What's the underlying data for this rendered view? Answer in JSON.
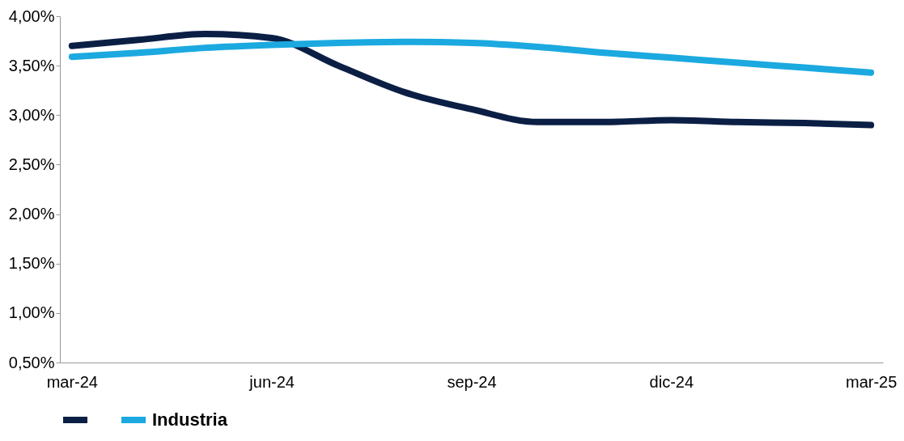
{
  "chart_data": {
    "type": "line",
    "categories": [
      "mar-24",
      null,
      null,
      "jun-24",
      null,
      null,
      "sep-24",
      null,
      null,
      "dic-24",
      null,
      null,
      "mar-25"
    ],
    "series": [
      {
        "name": null,
        "color": "#0b1f45",
        "values": [
          3.7,
          3.76,
          3.82,
          3.78,
          3.5,
          3.23,
          3.06,
          2.93,
          2.93,
          2.95,
          2.93,
          2.92,
          2.9
        ]
      },
      {
        "name": "Industria",
        "color": "#1ba9e0",
        "values": [
          3.59,
          3.63,
          3.68,
          3.71,
          3.73,
          3.74,
          3.73,
          3.69,
          3.63,
          3.58,
          3.53,
          3.48,
          3.43
        ]
      }
    ],
    "ylim": [
      0.5,
      4.0
    ],
    "yticks": [
      {
        "value": 0.5,
        "label": "0,50%"
      },
      {
        "value": 1.0,
        "label": "1,00%"
      },
      {
        "value": 1.5,
        "label": "1,50%"
      },
      {
        "value": 2.0,
        "label": "2,00%"
      },
      {
        "value": 2.5,
        "label": "2,50%"
      },
      {
        "value": 3.0,
        "label": "3,00%"
      },
      {
        "value": 3.5,
        "label": "3,50%"
      },
      {
        "value": 4.0,
        "label": "4,00%"
      }
    ],
    "grid": false,
    "legend": "bottom",
    "marker": "none",
    "line_style": "solid"
  }
}
